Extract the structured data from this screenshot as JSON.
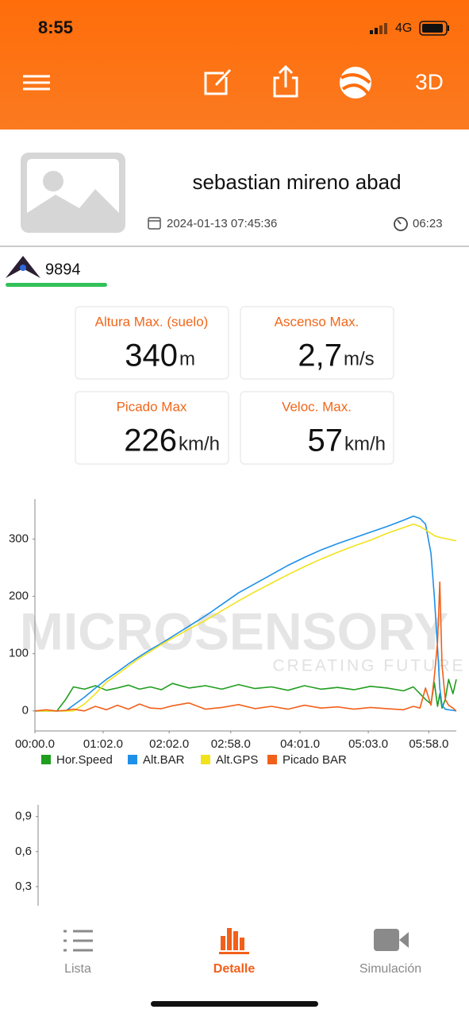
{
  "status_bar": {
    "time": "8:55",
    "network": "4G"
  },
  "header": {
    "mode_button": "3D"
  },
  "profile": {
    "name": "sebastian mireno abad",
    "date": "2024-01-13 07:45:36",
    "duration": "06:23"
  },
  "glider": {
    "id": "9894"
  },
  "stats": [
    {
      "label": "Altura Max. (suelo)",
      "value": "340",
      "unit": "m"
    },
    {
      "label": "Ascenso Max.",
      "value": "2,7",
      "unit": "m/s"
    },
    {
      "label": "Picado Max",
      "value": "226",
      "unit": "km/h"
    },
    {
      "label": "Veloc. Max.",
      "value": "57",
      "unit": "km/h"
    }
  ],
  "watermark": {
    "brand": "MICROSENSORY",
    "tagline": "CREATING FUTURE"
  },
  "chart_data": [
    {
      "type": "line",
      "x": [
        0,
        10,
        20,
        28,
        35,
        45,
        55,
        65,
        75,
        85,
        95,
        105,
        115,
        125,
        140,
        155,
        170,
        185,
        200,
        215,
        230,
        245,
        260,
        275,
        290,
        305,
        320,
        335,
        344,
        350,
        355,
        360,
        363,
        366,
        368,
        370,
        373,
        376,
        380,
        383
      ],
      "xlim": [
        0,
        383
      ],
      "xticks": [
        {
          "value": 0,
          "label": "00:00.0"
        },
        {
          "value": 62,
          "label": "01:02.0"
        },
        {
          "value": 122,
          "label": "02:02.0"
        },
        {
          "value": 178,
          "label": "02:58.0"
        },
        {
          "value": 241,
          "label": "04:01.0"
        },
        {
          "value": 303,
          "label": "05:03.0"
        },
        {
          "value": 358,
          "label": "05:58.0"
        }
      ],
      "ylim": [
        -35,
        370
      ],
      "yticks": [
        0,
        100,
        200,
        300
      ],
      "grid": false,
      "legend": "bottom",
      "series": [
        {
          "name": "Hor.Speed",
          "color": "#1f9e1f",
          "values": [
            0,
            0,
            0,
            20,
            42,
            38,
            44,
            36,
            40,
            45,
            38,
            42,
            37,
            48,
            40,
            44,
            38,
            46,
            39,
            42,
            36,
            44,
            38,
            41,
            37,
            43,
            40,
            35,
            42,
            30,
            20,
            12,
            50,
            8,
            30,
            5,
            20,
            55,
            30,
            55
          ]
        },
        {
          "name": "Alt.BAR",
          "color": "#1e90e8",
          "values": [
            0,
            0,
            0,
            0,
            10,
            24,
            40,
            55,
            68,
            82,
            95,
            107,
            118,
            130,
            148,
            166,
            186,
            206,
            222,
            238,
            254,
            268,
            281,
            292,
            302,
            312,
            322,
            333,
            340,
            336,
            326,
            275,
            200,
            110,
            40,
            10,
            3,
            2,
            1,
            0
          ]
        },
        {
          "name": "Alt.GPS",
          "color": "#f2e21c",
          "values": [
            0,
            0,
            0,
            0,
            0,
            12,
            30,
            50,
            64,
            78,
            92,
            104,
            116,
            127,
            143,
            158,
            175,
            192,
            208,
            223,
            238,
            252,
            265,
            277,
            288,
            298,
            310,
            320,
            326,
            322,
            316,
            310,
            306,
            304,
            303,
            302,
            301,
            300,
            298,
            297
          ]
        },
        {
          "name": "Picado BAR",
          "color": "#f2601a",
          "values": [
            0,
            2,
            0,
            1,
            3,
            0,
            8,
            2,
            10,
            3,
            12,
            5,
            4,
            9,
            14,
            3,
            6,
            11,
            4,
            8,
            3,
            10,
            5,
            7,
            3,
            6,
            4,
            2,
            8,
            5,
            40,
            10,
            60,
            120,
            225,
            80,
            20,
            10,
            5,
            0
          ]
        }
      ]
    },
    {
      "type": "line",
      "ylim": [
        0,
        1
      ],
      "yticks": [
        {
          "value": 0.9,
          "label": "0,9"
        },
        {
          "value": 0.6,
          "label": "0,6"
        },
        {
          "value": 0.3,
          "label": "0,3"
        }
      ],
      "series": []
    }
  ],
  "tab_bar": {
    "tabs": [
      "Lista",
      "Detalle",
      "Simulación"
    ],
    "active": "Detalle"
  }
}
